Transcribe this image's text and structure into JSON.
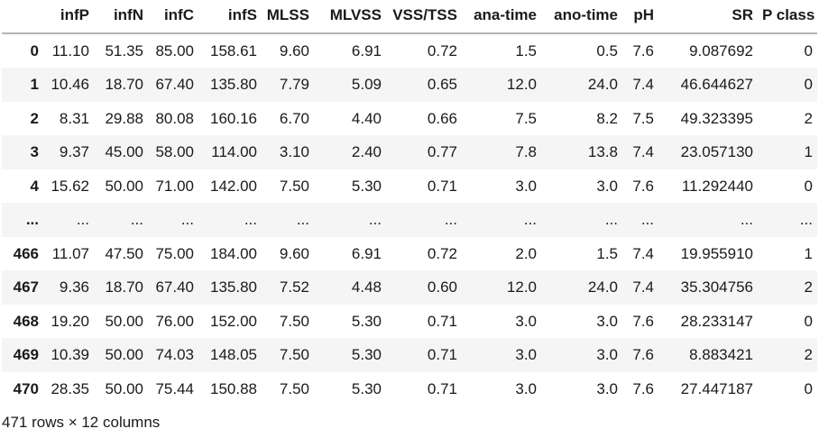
{
  "table": {
    "index_corner": "",
    "columns": [
      "infP",
      "infN",
      "infC",
      "infS",
      "MLSS",
      "MLVSS",
      "VSS/TSS",
      "ana-time",
      "ano-time",
      "pH",
      "SR",
      "P class"
    ],
    "rows": [
      {
        "index": "0",
        "cells": [
          "11.10",
          "51.35",
          "85.00",
          "158.61",
          "9.60",
          "6.91",
          "0.72",
          "1.5",
          "0.5",
          "7.6",
          "9.087692",
          "0"
        ]
      },
      {
        "index": "1",
        "cells": [
          "10.46",
          "18.70",
          "67.40",
          "135.80",
          "7.79",
          "5.09",
          "0.65",
          "12.0",
          "24.0",
          "7.4",
          "46.644627",
          "0"
        ]
      },
      {
        "index": "2",
        "cells": [
          "8.31",
          "29.88",
          "80.08",
          "160.16",
          "6.70",
          "4.40",
          "0.66",
          "7.5",
          "8.2",
          "7.5",
          "49.323395",
          "2"
        ]
      },
      {
        "index": "3",
        "cells": [
          "9.37",
          "45.00",
          "58.00",
          "114.00",
          "3.10",
          "2.40",
          "0.77",
          "7.8",
          "13.8",
          "7.4",
          "23.057130",
          "1"
        ]
      },
      {
        "index": "4",
        "cells": [
          "15.62",
          "50.00",
          "71.00",
          "142.00",
          "7.50",
          "5.30",
          "0.71",
          "3.0",
          "3.0",
          "7.6",
          "11.292440",
          "0"
        ]
      },
      {
        "index": "...",
        "cells": [
          "...",
          "...",
          "...",
          "...",
          "...",
          "...",
          "...",
          "...",
          "...",
          "...",
          "...",
          "..."
        ]
      },
      {
        "index": "466",
        "cells": [
          "11.07",
          "47.50",
          "75.00",
          "184.00",
          "9.60",
          "6.91",
          "0.72",
          "2.0",
          "1.5",
          "7.4",
          "19.955910",
          "1"
        ]
      },
      {
        "index": "467",
        "cells": [
          "9.36",
          "18.70",
          "67.40",
          "135.80",
          "7.52",
          "4.48",
          "0.60",
          "12.0",
          "24.0",
          "7.4",
          "35.304756",
          "2"
        ]
      },
      {
        "index": "468",
        "cells": [
          "19.20",
          "50.00",
          "76.00",
          "152.00",
          "7.50",
          "5.30",
          "0.71",
          "3.0",
          "3.0",
          "7.6",
          "28.233147",
          "0"
        ]
      },
      {
        "index": "469",
        "cells": [
          "10.39",
          "50.00",
          "74.03",
          "148.05",
          "7.50",
          "5.30",
          "0.71",
          "3.0",
          "3.0",
          "7.6",
          "8.883421",
          "2"
        ]
      },
      {
        "index": "470",
        "cells": [
          "28.35",
          "50.00",
          "75.44",
          "150.88",
          "7.50",
          "5.30",
          "0.71",
          "3.0",
          "3.0",
          "7.6",
          "27.447187",
          "0"
        ]
      }
    ],
    "shape_summary": "471 rows × 12 columns"
  },
  "colors": {
    "stripe": "#f5f5f5",
    "header_border": "#b5b5b5",
    "text": "#1a1a1a",
    "background": "#ffffff"
  }
}
